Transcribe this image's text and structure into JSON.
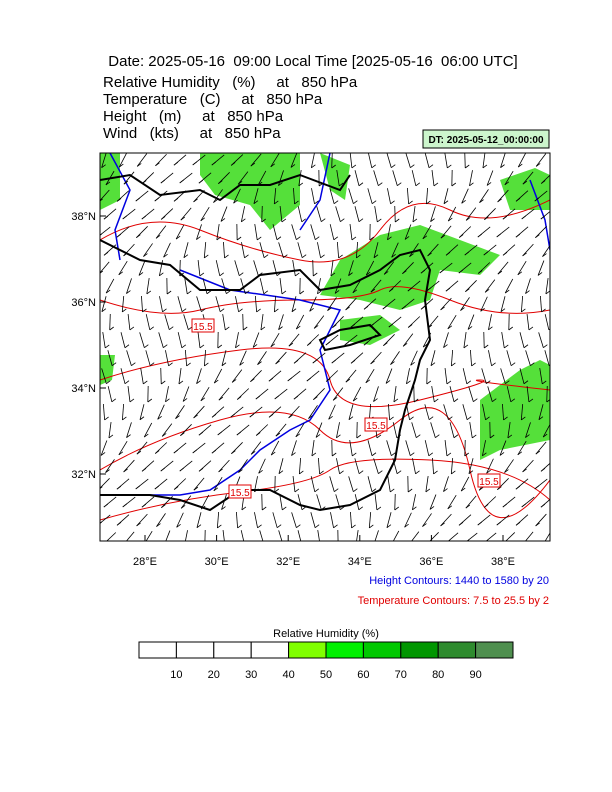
{
  "header": {
    "title": "Date: 2025-05-16  09:00 Local Time [2025-05-16  06:00 UTC]",
    "lines": [
      "Relative Humidity   (%)     at   850 hPa",
      "Temperature   (C)     at   850 hPa",
      "Height   (m)     at   850 hPa",
      "Wind   (kts)     at   850 hPa"
    ]
  },
  "dt_label": "DT: 2025-05-12_00:00:00",
  "map": {
    "lat_labels": [
      "38°N",
      "36°N",
      "34°N",
      "32°N"
    ],
    "lon_labels": [
      "28°E",
      "30°E",
      "32°E",
      "34°E",
      "36°E",
      "38°E"
    ],
    "contour_labels": [
      "15.5",
      "15.5",
      "15.5",
      "15.5"
    ]
  },
  "notes": {
    "height": "Height Contours: 1440 to 1580 by 20",
    "temperature": "Temperature Contours: 7.5 to 25.5 by 2"
  },
  "colorbar": {
    "title": "Relative Humidity  (%)",
    "labels": [
      "10",
      "20",
      "30",
      "40",
      "50",
      "60",
      "70",
      "80",
      "90"
    ],
    "colors": [
      "#ffffff",
      "#ffffff",
      "#ffffff",
      "#ffffff",
      "#80ff00",
      "#00f000",
      "#00c800",
      "#009600",
      "#2e8b2e",
      "#4f8f4f"
    ]
  }
}
